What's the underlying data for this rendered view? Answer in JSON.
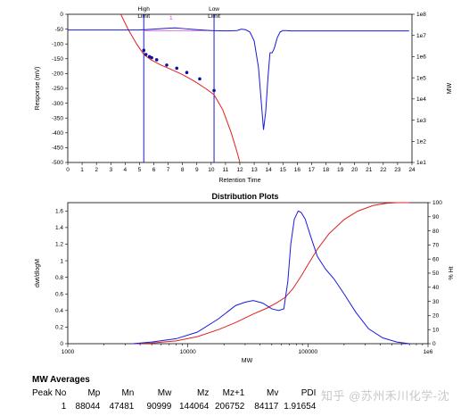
{
  "chart_data": [
    {
      "type": "line",
      "title": "",
      "xlabel": "Retention Time",
      "ylabel": "Response (mV)",
      "y2label": "MW",
      "xlim": [
        0,
        24
      ],
      "ylim": [
        -500,
        0
      ],
      "y2lim_log10": [
        1,
        8
      ],
      "x_ticks": [
        "0",
        "1",
        "2",
        "3",
        "4",
        "5",
        "6",
        "7",
        "8",
        "9",
        "10",
        "11",
        "12",
        "13",
        "14",
        "15",
        "16",
        "17",
        "18",
        "19",
        "20",
        "21",
        "22",
        "23",
        "24"
      ],
      "y_ticks": [
        "0",
        "-50",
        "-100",
        "-150",
        "-200",
        "-250",
        "-300",
        "-350",
        "-400",
        "-450",
        "-500"
      ],
      "y2_ticks": [
        "1e8",
        "1e7",
        "1e6",
        "1e5",
        "1e4",
        "1e3",
        "1e2",
        "1e1"
      ],
      "markers": [
        {
          "label": "High\nLimit",
          "x": 5.3
        },
        {
          "label": "Low\nLimit",
          "x": 10.2
        }
      ],
      "peak_label": {
        "text": "1",
        "x": 7.2
      },
      "series": [
        {
          "color": "#1a1adc",
          "x": [
            0,
            5,
            6,
            7,
            7.5,
            8,
            9,
            10,
            11,
            11.8,
            12.1,
            12.4,
            12.7,
            13.0,
            13.3,
            13.5,
            13.65,
            13.8,
            13.95,
            14.1,
            14.25,
            14.4,
            14.6,
            14.8,
            15.0,
            15.2,
            15.6,
            16,
            18,
            20,
            22,
            23.8
          ],
          "values": [
            -53,
            -53,
            -50,
            -47,
            -46,
            -48,
            -52,
            -55,
            -56,
            -55,
            -50,
            -52,
            -60,
            -90,
            -180,
            -300,
            -390,
            -330,
            -220,
            -130,
            -130,
            -115,
            -80,
            -60,
            -55,
            -55,
            -56,
            -56,
            -56,
            -56,
            -56,
            -56
          ]
        },
        {
          "color": "#e02020",
          "x": [
            3.7,
            4.2,
            4.8,
            5.3,
            5.8,
            6.5,
            7.2,
            8.0,
            8.8,
            9.6,
            10.2,
            10.8,
            11.4,
            11.8,
            12.0
          ],
          "values_log10_mw": [
            8.0,
            7.3,
            6.6,
            6.1,
            5.85,
            5.6,
            5.4,
            5.15,
            4.85,
            4.5,
            4.2,
            3.5,
            2.4,
            1.5,
            1.0
          ]
        }
      ],
      "calibration_points": [
        {
          "x": 5.3,
          "log10_mw": 6.3
        },
        {
          "x": 5.45,
          "log10_mw": 6.1
        },
        {
          "x": 5.7,
          "log10_mw": 6.0
        },
        {
          "x": 5.85,
          "log10_mw": 5.95
        },
        {
          "x": 6.2,
          "log10_mw": 5.85
        },
        {
          "x": 6.9,
          "log10_mw": 5.6
        },
        {
          "x": 7.6,
          "log10_mw": 5.45
        },
        {
          "x": 8.3,
          "log10_mw": 5.25
        },
        {
          "x": 9.2,
          "log10_mw": 4.95
        },
        {
          "x": 10.2,
          "log10_mw": 4.4
        }
      ]
    },
    {
      "type": "line",
      "title": "Distribution Plots",
      "xlabel": "MW",
      "ylabel": "dwt/dlogM",
      "y2label": "% Ht",
      "x_scale": "log",
      "xlim": [
        1000,
        1000000
      ],
      "ylim": [
        0,
        1.7
      ],
      "y2lim": [
        0,
        100
      ],
      "x_ticks": [
        "1000",
        "10000",
        "100000",
        "1e6"
      ],
      "y_ticks": [
        "0",
        "0.2",
        "0.4",
        "0.6",
        "0.8",
        "1",
        "1.2",
        "1.4",
        "1.6"
      ],
      "y2_ticks": [
        "0",
        "10",
        "20",
        "30",
        "40",
        "50",
        "60",
        "70",
        "80",
        "90",
        "100"
      ],
      "series": [
        {
          "color": "#1a1adc",
          "x": [
            3500,
            5000,
            8000,
            12000,
            18000,
            25000,
            30000,
            35000,
            42000,
            50000,
            57000,
            63000,
            68000,
            72000,
            77000,
            83000,
            88000,
            95000,
            105000,
            120000,
            140000,
            165000,
            200000,
            250000,
            320000,
            420000,
            550000,
            700000
          ],
          "values": [
            0.0,
            0.02,
            0.06,
            0.14,
            0.3,
            0.46,
            0.5,
            0.52,
            0.49,
            0.42,
            0.4,
            0.42,
            0.75,
            1.2,
            1.5,
            1.6,
            1.58,
            1.5,
            1.3,
            1.05,
            0.9,
            0.78,
            0.6,
            0.38,
            0.18,
            0.07,
            0.02,
            0.0
          ]
        },
        {
          "color": "#e02020",
          "x": [
            3500,
            5000,
            8000,
            12000,
            18000,
            25000,
            35000,
            45000,
            55000,
            65000,
            75000,
            88000,
            100000,
            120000,
            150000,
            200000,
            260000,
            350000,
            450000,
            550000,
            700000
          ],
          "values": [
            0,
            0.5,
            2,
            5,
            10,
            15,
            21,
            25,
            29,
            33,
            39,
            48,
            56,
            67,
            78,
            88,
            94,
            98,
            99.5,
            100,
            100
          ]
        }
      ]
    }
  ],
  "mw_averages": {
    "title": "MW Averages",
    "headers": [
      "Peak No",
      "Mp",
      "Mn",
      "Mw",
      "Mz",
      "Mz+1",
      "Mv",
      "PDI"
    ],
    "rows": [
      [
        "1",
        "88044",
        "47481",
        "90999",
        "144064",
        "206752",
        "84117",
        "1.91654"
      ]
    ]
  },
  "watermark": "知乎 @苏州禾川化学-沈"
}
